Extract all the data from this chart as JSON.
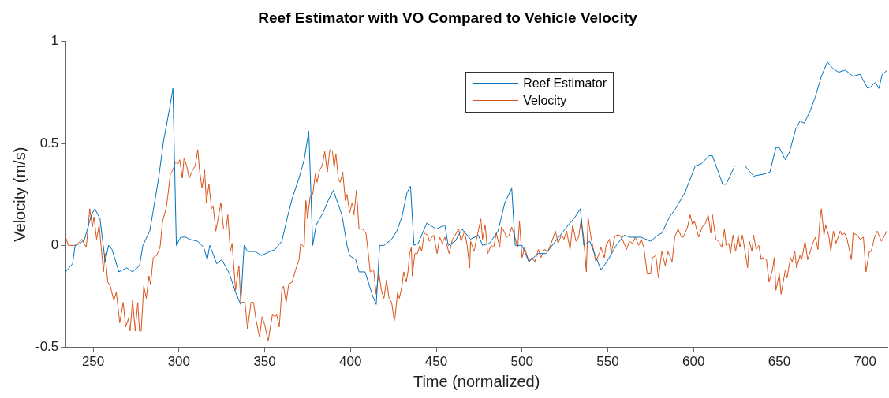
{
  "chart_data": {
    "type": "line",
    "title": "Reef Estimator with VO Compared to Vehicle Velocity",
    "xlabel": "Time (normalized)",
    "ylabel": "Velocity (m/s)",
    "xlim": [
      234,
      713
    ],
    "ylim": [
      -0.5,
      1
    ],
    "xticks": [
      250,
      300,
      350,
      400,
      450,
      500,
      550,
      600,
      650,
      700
    ],
    "yticks": [
      -0.5,
      0,
      0.5,
      1
    ],
    "legend": "top",
    "grid": false,
    "marker": "none",
    "line_style": "solid",
    "series": [
      {
        "name": "Reef Estimator",
        "color": "#0072bd",
        "x": [
          234,
          238,
          239.5,
          242.5,
          245,
          249,
          251,
          254,
          257,
          259,
          261,
          265,
          269.5,
          273,
          277,
          279,
          283,
          285,
          288,
          291,
          294.5,
          296.5,
          298.5,
          301,
          304,
          306,
          311,
          314.5,
          316.5,
          318,
          322,
          325,
          329.5,
          333,
          336,
          338,
          340,
          344.5,
          348,
          353,
          356,
          360,
          363,
          366,
          370,
          373,
          375.7,
          378,
          380,
          384,
          387,
          390,
          395,
          398,
          399.5,
          403,
          405,
          408.5,
          413,
          415,
          417,
          419.5,
          424,
          427,
          430,
          433,
          435,
          437,
          439.5,
          444.5,
          450,
          455,
          457,
          461,
          465,
          470,
          474.5,
          477,
          481,
          486,
          490,
          494,
          496,
          500,
          504,
          509.5,
          514,
          519.5,
          527,
          531,
          534,
          536,
          539.5,
          546,
          549.5,
          555,
          559.5,
          563,
          569.5,
          575,
          579,
          581.5,
          586,
          589.5,
          595,
          601,
          604.5,
          609,
          611,
          617,
          619,
          624,
          630,
          635,
          641,
          644.5,
          648,
          650,
          653.5,
          656,
          659.5,
          662,
          664.5,
          668,
          671,
          674.5,
          678,
          681,
          684.5,
          688.5,
          693,
          697,
          701.5,
          703.5,
          706,
          708,
          710,
          713
        ],
        "values": [
          -0.13,
          -0.09,
          0,
          0.01,
          0.03,
          0.15,
          0.18,
          0.13,
          -0.08,
          0,
          -0.02,
          -0.13,
          -0.11,
          -0.13,
          -0.1,
          0,
          0.07,
          0.17,
          0.32,
          0.51,
          0.67,
          0.77,
          0,
          0.04,
          0.04,
          0.03,
          0.02,
          -0.01,
          -0.07,
          0,
          -0.09,
          -0.07,
          -0.14,
          -0.23,
          -0.29,
          0,
          -0.03,
          -0.03,
          -0.05,
          -0.03,
          -0.02,
          0.02,
          0.13,
          0.23,
          0.33,
          0.42,
          0.56,
          0,
          0.1,
          0.16,
          0.22,
          0.27,
          0.15,
          0,
          -0.05,
          -0.07,
          -0.13,
          -0.13,
          -0.25,
          -0.29,
          0,
          0,
          0.03,
          0.07,
          0.14,
          0.26,
          0.29,
          0,
          0.01,
          0.11,
          0.08,
          0.1,
          0,
          0.02,
          0.08,
          0.03,
          0.05,
          0,
          0.01,
          0.07,
          0.21,
          0.28,
          0,
          0,
          -0.08,
          -0.04,
          -0.04,
          0.02,
          0.1,
          0.14,
          0.18,
          0,
          0.02,
          -0.12,
          -0.08,
          0,
          0.05,
          0.04,
          0.04,
          0.02,
          0.05,
          0.06,
          0.14,
          0.18,
          0.26,
          0.39,
          0.4,
          0.44,
          0.44,
          0.3,
          0.3,
          0.39,
          0.39,
          0.34,
          0.35,
          0.36,
          0.48,
          0.48,
          0.42,
          0.46,
          0.57,
          0.61,
          0.6,
          0.66,
          0.73,
          0.83,
          0.9,
          0.87,
          0.85,
          0.86,
          0.83,
          0.84,
          0.77,
          0.78,
          0.8,
          0.77,
          0.84,
          0.86
        ]
      },
      {
        "name": "Velocity",
        "color": "#d95319",
        "x": [
          234,
          235.5,
          240,
          243.5,
          246,
          248,
          249.5,
          250.5,
          252,
          253.5,
          256,
          257,
          258.5,
          260,
          262,
          263.5,
          265.5,
          267.5,
          269,
          270.5,
          271.5,
          273,
          274.5,
          276,
          277,
          278,
          279.5,
          281,
          282.5,
          283.5,
          285,
          287,
          289,
          290.5,
          292.5,
          293.5,
          295,
          296.5,
          298,
          299.5,
          300.5,
          302,
          303,
          304.5,
          306,
          308,
          309.5,
          311,
          312,
          313.5,
          315,
          316,
          317.5,
          319,
          320,
          321.5,
          323,
          324.5,
          326,
          327.5,
          328.5,
          330,
          331,
          333,
          335,
          336,
          338.5,
          340,
          342,
          343.5,
          345,
          347,
          348.5,
          350,
          352,
          354.5,
          356,
          357,
          358.5,
          360,
          361,
          362.5,
          364,
          366,
          368,
          370,
          371,
          373,
          374,
          375,
          376.5,
          378,
          379.5,
          380.5,
          382,
          383.5,
          385,
          386.5,
          388,
          389.5,
          390.5,
          391.5,
          393,
          394,
          395.5,
          397,
          398,
          399.5,
          401,
          402,
          403.5,
          405,
          407,
          409,
          410,
          411.5,
          413.5,
          415,
          416.5,
          418,
          419.5,
          421,
          422.5,
          424,
          425.5,
          426,
          427.5,
          428.5,
          430,
          431,
          432.5,
          433.5,
          434.5,
          435.5,
          436,
          437.5,
          439,
          440.5,
          441.5,
          443,
          445,
          446,
          447.5,
          448.5,
          450.5,
          452,
          453.5,
          455,
          457.5,
          459.5,
          461,
          463,
          464.5,
          466.5,
          468,
          469.5,
          470,
          472,
          473.5,
          476,
          477,
          478.5,
          480,
          482,
          483.5,
          485,
          487,
          488,
          489.5,
          491,
          492.5,
          494,
          495.5,
          497.5,
          498.5,
          500,
          501.5,
          504,
          505.5,
          507.5,
          509.5,
          511,
          513,
          515,
          517,
          519.5,
          521,
          523,
          524.5,
          526,
          528,
          529.5,
          531.5,
          533,
          534.5,
          536,
          537.5,
          538.5,
          540,
          543,
          545,
          546,
          548,
          549,
          551,
          552,
          554,
          555,
          557,
          558.5,
          561,
          562.5,
          564.5,
          566,
          568,
          569.5,
          571,
          573,
          575,
          576,
          578,
          579.5,
          581.5,
          583.5,
          585,
          587.5,
          589,
          591,
          593,
          594,
          596.5,
          598,
          599.5,
          600.5,
          603,
          605,
          607,
          608.5,
          610,
          611,
          613,
          614.5,
          616.5,
          618,
          619,
          620.5,
          621.5,
          623,
          624.5,
          626,
          627,
          628.5,
          630,
          631.5,
          632.5,
          634,
          635,
          636.5,
          638,
          639.5,
          640,
          642.5,
          644,
          646,
          647,
          648,
          650,
          651,
          653.5,
          654.5,
          656.5,
          657.5,
          659,
          660,
          662,
          663,
          665,
          666.5,
          668,
          669.5,
          671,
          672.5,
          673.5,
          674.5,
          676,
          677,
          679,
          680,
          681.5,
          683,
          685.5,
          686.5,
          688,
          689.5,
          692,
          693,
          695.5,
          697,
          699,
          700.5,
          702.5,
          703.5,
          705.5,
          707,
          708.5,
          709.5,
          711.5,
          712.5
        ],
        "values": [
          0.04,
          0,
          0,
          0.03,
          -0.01,
          0.18,
          0.09,
          0.14,
          0.03,
          0.1,
          -0.13,
          -0.04,
          -0.18,
          -0.2,
          -0.27,
          -0.23,
          -0.38,
          -0.28,
          -0.4,
          -0.36,
          -0.42,
          -0.27,
          -0.42,
          -0.28,
          -0.42,
          -0.42,
          -0.2,
          -0.26,
          -0.15,
          -0.19,
          -0.06,
          -0.05,
          -0.01,
          0.12,
          0.18,
          0.24,
          0.35,
          0.37,
          0.41,
          0.4,
          0.42,
          0.33,
          0.43,
          0.39,
          0.33,
          0.37,
          0.39,
          0.47,
          0.37,
          0.28,
          0.37,
          0.21,
          0.3,
          0.18,
          0.19,
          0.07,
          0.14,
          0.21,
          0.08,
          0.08,
          0.15,
          -0.03,
          0.01,
          -0.22,
          -0.1,
          -0.28,
          -0.28,
          -0.41,
          -0.28,
          -0.28,
          -0.37,
          -0.45,
          -0.35,
          -0.39,
          -0.47,
          -0.34,
          -0.35,
          -0.34,
          -0.4,
          -0.22,
          -0.2,
          -0.28,
          -0.19,
          -0.18,
          -0.12,
          -0.07,
          0.01,
          -0.01,
          0.22,
          0.13,
          0.24,
          0.25,
          0.35,
          0.31,
          0.37,
          0.39,
          0.46,
          0.36,
          0.47,
          0.46,
          0.38,
          0.45,
          0.32,
          0.31,
          0.36,
          0.22,
          0.25,
          0.16,
          0.21,
          0.15,
          0.27,
          0.08,
          0.08,
          0.06,
          -0.01,
          -0.13,
          -0.12,
          -0.24,
          -0.13,
          -0.22,
          -0.26,
          -0.17,
          -0.26,
          -0.28,
          -0.37,
          -0.35,
          -0.23,
          -0.26,
          -0.2,
          -0.13,
          -0.18,
          -0.13,
          -0.04,
          -0.01,
          -0.15,
          -0.04,
          -0.04,
          0,
          -0.03,
          0.06,
          0.05,
          0.02,
          0.04,
          0.05,
          -0.04,
          0.04,
          0.01,
          0.04,
          -0.04,
          0.03,
          0.05,
          0.08,
          0.02,
          0.07,
          0,
          -0.11,
          0.02,
          -0.03,
          0.03,
          0.13,
          0.03,
          0.1,
          -0.04,
          0,
          -0.01,
          0.06,
          -0.01,
          0.09,
          0.07,
          0.04,
          0.05,
          0.09,
          0.05,
          -0.01,
          0.12,
          -0.06,
          -0.01,
          -0.08,
          -0.06,
          -0.08,
          -0.02,
          -0.06,
          -0.02,
          -0.03,
          0.01,
          0.07,
          0.01,
          0.05,
          0.03,
          0.07,
          -0.02,
          0.1,
          0.02,
          0.04,
          0.13,
          0.03,
          -0.13,
          0.14,
          0.05,
          -0.08,
          -0.04,
          -0.01,
          -0.06,
          0,
          0.03,
          -0.04,
          0.04,
          0.05,
          0.05,
          0.03,
          -0.02,
          0.02,
          0.01,
          0.04,
          0,
          0.03,
          -0.01,
          -0.14,
          -0.14,
          -0.06,
          -0.05,
          -0.16,
          -0.03,
          -0.1,
          -0.03,
          -0.08,
          0.04,
          0.08,
          0.04,
          0.04,
          0.09,
          0.15,
          0.1,
          0.12,
          0.04,
          0.09,
          0.11,
          0.15,
          0.06,
          0.15,
          0.03,
          0.02,
          -0.01,
          0.08,
          0,
          0.01,
          -0.04,
          0.05,
          -0.03,
          0.05,
          -0.01,
          0.05,
          -0.03,
          -0.11,
          0.02,
          -0.03,
          0.05,
          -0.02,
          0,
          -0.07,
          -0.06,
          -0.07,
          -0.18,
          -0.12,
          -0.06,
          -0.22,
          -0.14,
          -0.24,
          -0.12,
          -0.16,
          -0.06,
          -0.08,
          -0.03,
          -0.11,
          -0.05,
          -0.07,
          0.02,
          -0.07,
          -0.03,
          0.01,
          0.04,
          -0.02,
          0.11,
          0.18,
          0.05,
          0.1,
          0.04,
          -0.03,
          0.07,
          0.01,
          0.07,
          0.05,
          0.06,
          0.03,
          -0.07,
          0.06,
          0.05,
          0.03,
          0.04,
          -0.13,
          -0.03,
          -0.03,
          0.04,
          0.07,
          0.04,
          0.02,
          0.05,
          0.07
        ]
      }
    ]
  }
}
